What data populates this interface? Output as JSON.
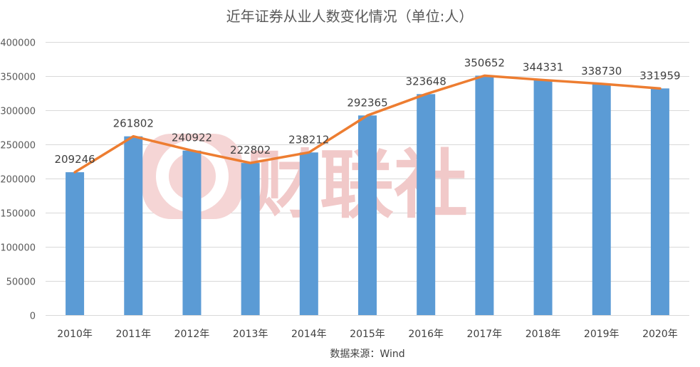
{
  "chart_data": {
    "type": "bar",
    "title": "近年证券从业人数变化情况（单位:人）",
    "categories": [
      "2010年",
      "2011年",
      "2012年",
      "2013年",
      "2014年",
      "2015年",
      "2016年",
      "2017年",
      "2018年",
      "2019年",
      "2020年"
    ],
    "series": [
      {
        "type": "bar",
        "values": [
          209246,
          261802,
          240922,
          222802,
          238212,
          292365,
          323648,
          350652,
          344331,
          338730,
          331959
        ]
      },
      {
        "type": "line",
        "values": [
          209246,
          261802,
          240922,
          222802,
          238212,
          292365,
          323648,
          350652,
          344331,
          338730,
          331959
        ]
      }
    ],
    "data_labels": [
      "209246",
      "261802",
      "240922",
      "222802",
      "238212",
      "292365",
      "323648",
      "350652",
      "344331",
      "338730",
      "331959"
    ],
    "yticks": [
      0,
      50000,
      100000,
      150000,
      200000,
      250000,
      300000,
      350000,
      400000
    ],
    "ylim": [
      0,
      400000
    ],
    "grid": true,
    "legend": "none",
    "source": "数据来源：Wind",
    "watermark": "财联社",
    "colors": {
      "bar": "#5b9bd5",
      "line": "#ed7d31",
      "watermark": "#f1c9c9"
    }
  }
}
